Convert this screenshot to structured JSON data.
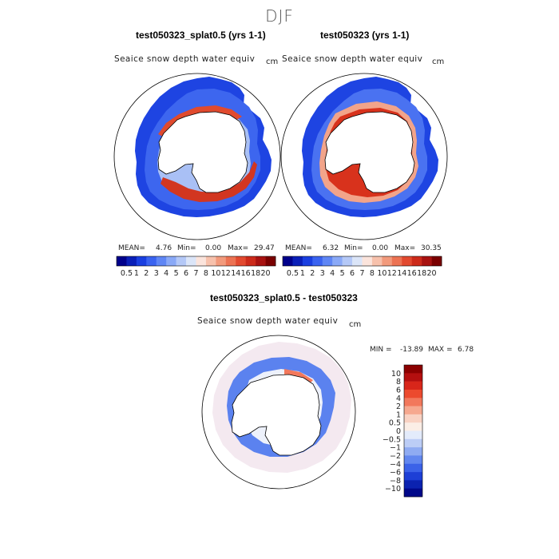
{
  "figure": {
    "season": "DJF",
    "diff_title": "test050323_splat0.5 - test050323"
  },
  "colors": {
    "field_scale": [
      "#00008b",
      "#0a1fb8",
      "#1a3fe0",
      "#3a63f0",
      "#5f86f5",
      "#8aa9f7",
      "#b4c8f7",
      "#dbe5f8",
      "#fbe4dc",
      "#f7c1ac",
      "#f29a7c",
      "#ec7253",
      "#e2492f",
      "#cc2a1a",
      "#a81210",
      "#7a0000"
    ],
    "diff_scale": [
      "#8b0000",
      "#b40f0f",
      "#d8261a",
      "#ec4a2e",
      "#f2785c",
      "#f6a88f",
      "#f9d2c3",
      "#fbeee6",
      "#e3ebfb",
      "#bccdf6",
      "#8fabf2",
      "#6287ef",
      "#3b62e8",
      "#1d3fd6",
      "#0b22b0",
      "#00088a"
    ]
  },
  "chart_data": [
    {
      "type": "heatmap",
      "projection": "south-polar-stereographic",
      "title": "test050323_splat0.5 (yrs 1-1)",
      "variable": "Seaice snow depth water equiv",
      "units": "cm",
      "mean_label": "MEAN=",
      "mean": "4.76",
      "min_label": "Min=",
      "min": "0.00",
      "max_label": "Max=",
      "max": "29.47",
      "colorbar_levels": [
        "0.5",
        "1",
        "2",
        "3",
        "4",
        "5",
        "6",
        "7",
        "8",
        "10",
        "12",
        "14",
        "16",
        "18",
        "20"
      ]
    },
    {
      "type": "heatmap",
      "projection": "south-polar-stereographic",
      "title": "test050323 (yrs 1-1)",
      "variable": "Seaice snow depth water equiv",
      "units": "cm",
      "mean_label": "MEAN=",
      "mean": "6.32",
      "min_label": "Min=",
      "min": "0.00",
      "max_label": "Max=",
      "max": "30.35",
      "colorbar_levels": [
        "0.5",
        "1",
        "2",
        "3",
        "4",
        "5",
        "6",
        "7",
        "8",
        "10",
        "12",
        "14",
        "16",
        "18",
        "20"
      ]
    },
    {
      "type": "heatmap",
      "projection": "south-polar-stereographic",
      "title": "test050323_splat0.5 - test050323",
      "variable": "Seaice snow depth water equiv",
      "units": "cm",
      "min_label": "MIN =",
      "min": "-13.89",
      "max_label": "MAX =",
      "max": "6.78",
      "colorbar_levels": [
        "10",
        "8",
        "6",
        "4",
        "2",
        "1",
        "0.5",
        "0",
        "−0.5",
        "−1",
        "−2",
        "−4",
        "−6",
        "−8",
        "−10"
      ]
    }
  ]
}
